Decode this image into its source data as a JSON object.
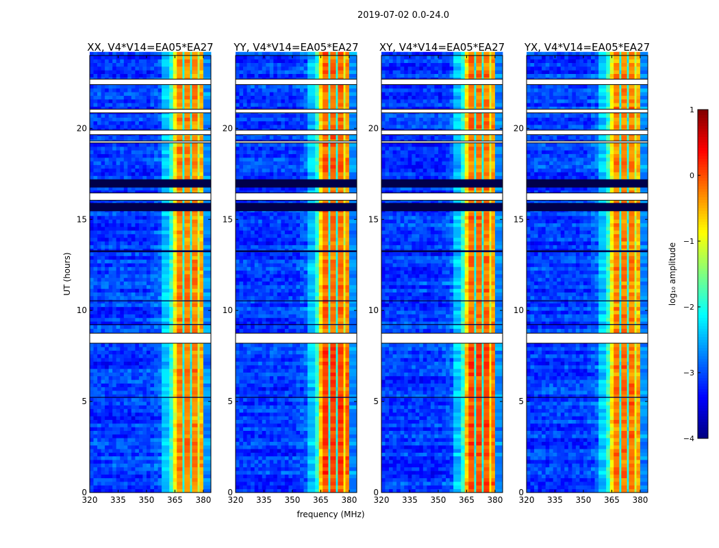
{
  "chart_data": {
    "type": "heatmap",
    "title": "2019-07-02 0.0-24.0",
    "xlabel": "frequency (MHz)",
    "ylabel": "UT (hours)",
    "xlim": [
      320,
      384
    ],
    "ylim": [
      0,
      24
    ],
    "xticks": [
      320,
      335,
      350,
      365,
      380
    ],
    "yticks": [
      0,
      5,
      10,
      15,
      20
    ],
    "panels": [
      {
        "title": "XX, V4*V14=EA05*EA27",
        "gain": 0.0,
        "early_gain": 0.0
      },
      {
        "title": "YY, V4*V14=EA05*EA27",
        "gain": 0.15,
        "early_gain": 0.35
      },
      {
        "title": "XY, V4*V14=EA05*EA27",
        "gain": 0.1,
        "early_gain": 0.3
      },
      {
        "title": "YX, V4*V14=EA05*EA27",
        "gain": 0.0,
        "early_gain": 0.1
      }
    ],
    "spectrum_profile": [
      [
        358,
        362,
        -2.4
      ],
      [
        362,
        364,
        -1.9
      ],
      [
        364,
        366,
        -0.9
      ],
      [
        366,
        369,
        -0.3
      ],
      [
        369,
        370,
        -2.0
      ],
      [
        370,
        373,
        -0.3
      ],
      [
        373,
        374,
        -2.0
      ],
      [
        374,
        377,
        -0.3
      ],
      [
        377,
        378,
        -1.2
      ],
      [
        378,
        380,
        -0.5
      ],
      [
        380,
        384,
        -2.7
      ]
    ],
    "background_level": -3.1,
    "flagged_gaps_hours": [
      [
        22.4,
        22.7
      ],
      [
        20.85,
        21.05
      ],
      [
        19.65,
        19.9
      ],
      [
        19.2,
        19.3
      ],
      [
        16.05,
        16.45
      ],
      [
        8.2,
        8.75
      ]
    ],
    "dark_rows_hours": [
      [
        15.45,
        15.9
      ],
      [
        16.75,
        17.2
      ],
      [
        13.2,
        13.3
      ],
      [
        10.5,
        10.55
      ],
      [
        9.2,
        9.25
      ],
      [
        5.2,
        5.25
      ]
    ],
    "colorbar": {
      "label": "log₁₀ amplitude",
      "min": -4,
      "max": 1,
      "ticks": [
        "1",
        "0",
        "−1",
        "−2",
        "−3",
        "−4"
      ]
    }
  }
}
